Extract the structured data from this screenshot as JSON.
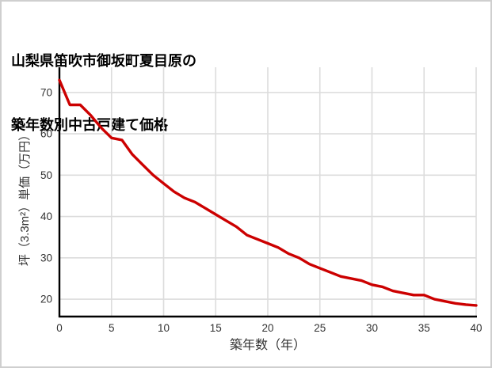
{
  "page": {
    "background": "#ffffff",
    "border_color": "#cfcfcf"
  },
  "title": {
    "line1": "山梨県笛吹市御坂町夏目原の",
    "line2": "築年数別中古戸建て価格"
  },
  "chart_data": {
    "type": "line",
    "title": "山梨県笛吹市御坂町夏目原の築年数別中古戸建て価格",
    "xlabel": "築年数（年）",
    "ylabel": "坪（3.3m²）単価（万円）",
    "x": [
      0,
      1,
      2,
      3,
      4,
      5,
      6,
      7,
      8,
      9,
      10,
      11,
      12,
      13,
      14,
      15,
      16,
      17,
      18,
      19,
      20,
      21,
      22,
      23,
      24,
      25,
      26,
      27,
      28,
      29,
      30,
      31,
      32,
      33,
      34,
      35,
      36,
      37,
      38,
      39,
      40
    ],
    "values": [
      73,
      67,
      67,
      64.5,
      61.5,
      59,
      58.5,
      55,
      52.5,
      50,
      48,
      46,
      44.5,
      43.5,
      42,
      40.5,
      39,
      37.5,
      35.5,
      34.5,
      33.5,
      32.5,
      31,
      30,
      28.5,
      27.5,
      26.5,
      25.5,
      25,
      24.5,
      23.5,
      23,
      22,
      21.5,
      21,
      21,
      20,
      19.5,
      19,
      18.7,
      18.5
    ],
    "x_ticks": [
      0,
      5,
      10,
      15,
      20,
      25,
      30,
      35,
      40
    ],
    "y_ticks": [
      20,
      30,
      40,
      50,
      60,
      70
    ],
    "xlim": [
      0,
      40
    ],
    "ylim": [
      15.8,
      76.1
    ],
    "grid": true,
    "legend": "none",
    "line_color": "#cc0000",
    "grid_color": "#dcdcdc",
    "axis_color": "#000000",
    "tick_color": "#333333"
  }
}
